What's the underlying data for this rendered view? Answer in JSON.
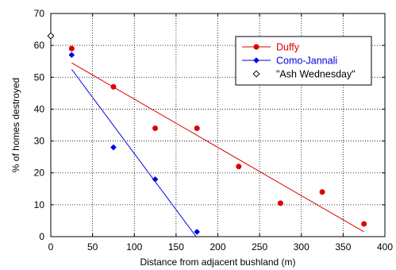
{
  "chart_data": {
    "type": "scatter",
    "xlabel": "Distance from adjacent bushland (m)",
    "ylabel": "% of homes destroyed",
    "xlim": [
      0,
      400
    ],
    "ylim": [
      0,
      70
    ],
    "xticks": [
      0,
      50,
      100,
      150,
      200,
      250,
      300,
      350,
      400
    ],
    "yticks": [
      0,
      10,
      20,
      30,
      40,
      50,
      60,
      70
    ],
    "grid": true,
    "legend_position": "top-right",
    "series": [
      {
        "name": "Duffy",
        "color": "#e00000",
        "marker": "circle",
        "points": [
          {
            "x": 25,
            "y": 59
          },
          {
            "x": 75,
            "y": 47
          },
          {
            "x": 125,
            "y": 34
          },
          {
            "x": 175,
            "y": 34
          },
          {
            "x": 225,
            "y": 22
          },
          {
            "x": 275,
            "y": 10.5
          },
          {
            "x": 325,
            "y": 14
          },
          {
            "x": 375,
            "y": 4
          }
        ],
        "fit_line": {
          "x": [
            25,
            375
          ],
          "y": [
            54.5,
            1.5
          ]
        }
      },
      {
        "name": "Como-Jannali",
        "color": "#0000e0",
        "marker": "diamond",
        "points": [
          {
            "x": 25,
            "y": 57
          },
          {
            "x": 75,
            "y": 28
          },
          {
            "x": 125,
            "y": 18
          },
          {
            "x": 175,
            "y": 1.5
          }
        ],
        "fit_line": {
          "x": [
            25,
            174
          ],
          "y": [
            52.5,
            0
          ]
        }
      },
      {
        "name": "\"Ash Wednesday\"",
        "color": "#000000",
        "marker": "open-diamond",
        "points": [
          {
            "x": 0,
            "y": 63
          }
        ]
      }
    ]
  }
}
